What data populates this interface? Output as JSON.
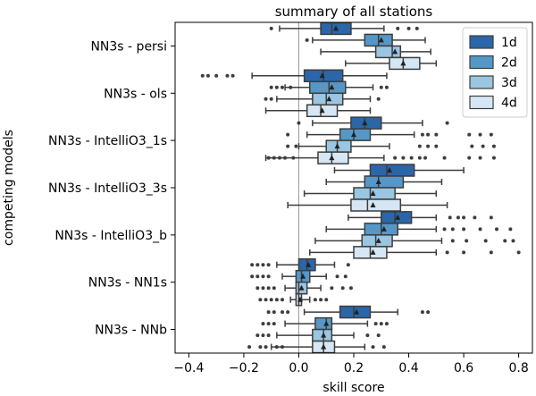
{
  "chart_data": {
    "type": "boxplot",
    "orientation": "horizontal",
    "title": "summary of all stations",
    "xlabel": "skill score",
    "ylabel": "competing models",
    "xlim": [
      -0.45,
      0.85
    ],
    "xticks": [
      -0.4,
      -0.2,
      0.0,
      0.2,
      0.4,
      0.6,
      0.8
    ],
    "xtick_labels": [
      "−0.4",
      "−0.2",
      "0.0",
      "0.2",
      "0.4",
      "0.6",
      "0.8"
    ],
    "reference_line": 0.0,
    "legend_position": "top-right",
    "series": [
      {
        "name": "1d",
        "color": "#2b66a8"
      },
      {
        "name": "2d",
        "color": "#5598c8"
      },
      {
        "name": "3d",
        "color": "#9ac6e1"
      },
      {
        "name": "4d",
        "color": "#d6e6f4"
      }
    ],
    "categories": [
      "NN3s - persi",
      "NN3s - ols",
      "NN3s - IntelliO3_1s",
      "NN3s - IntelliO3_3s",
      "NN3s - IntelliO3_b",
      "NN3s - NN1s",
      "NN3s - NNb"
    ],
    "boxes": [
      [
        {
          "lw": -0.07,
          "q1": 0.08,
          "med": 0.12,
          "q3": 0.19,
          "uw": 0.31,
          "mean": 0.135,
          "out": [
            -0.1,
            0.36,
            0.4,
            0.43
          ]
        },
        {
          "lw": 0.05,
          "q1": 0.24,
          "med": 0.29,
          "q3": 0.34,
          "uw": 0.46,
          "mean": 0.3,
          "out": [
            0.03
          ]
        },
        {
          "lw": 0.08,
          "q1": 0.28,
          "med": 0.34,
          "q3": 0.37,
          "uw": 0.48,
          "mean": 0.35,
          "out": []
        },
        {
          "lw": 0.17,
          "q1": 0.33,
          "med": 0.38,
          "q3": 0.44,
          "uw": 0.5,
          "mean": 0.38,
          "out": []
        }
      ],
      [
        {
          "lw": -0.17,
          "q1": 0.02,
          "med": 0.09,
          "q3": 0.16,
          "uw": 0.32,
          "mean": 0.085,
          "out": [
            -0.35,
            -0.33,
            -0.3,
            -0.26,
            -0.24
          ]
        },
        {
          "lw": -0.05,
          "q1": 0.04,
          "med": 0.11,
          "q3": 0.17,
          "uw": 0.27,
          "mean": 0.12,
          "out": [
            -0.1,
            -0.08,
            -0.06,
            -0.03,
            0.3,
            0.32
          ]
        },
        {
          "lw": -0.08,
          "q1": 0.05,
          "med": 0.1,
          "q3": 0.16,
          "uw": 0.26,
          "mean": 0.11,
          "out": [
            -0.12,
            -0.1,
            0.29
          ]
        },
        {
          "lw": -0.12,
          "q1": 0.03,
          "med": 0.08,
          "q3": 0.14,
          "uw": 0.26,
          "mean": 0.085,
          "out": []
        }
      ],
      [
        {
          "lw": 0.05,
          "q1": 0.19,
          "med": 0.24,
          "q3": 0.3,
          "uw": 0.45,
          "mean": 0.24,
          "out": [
            0.0,
            0.54
          ]
        },
        {
          "lw": 0.03,
          "q1": 0.15,
          "med": 0.2,
          "q3": 0.26,
          "uw": 0.42,
          "mean": 0.2,
          "out": [
            -0.04,
            0.45,
            0.47,
            0.5,
            0.62,
            0.66,
            0.7
          ]
        },
        {
          "lw": 0.0,
          "q1": 0.1,
          "med": 0.14,
          "q3": 0.19,
          "uw": 0.33,
          "mean": 0.14,
          "out": [
            -0.04,
            -0.01,
            0.44,
            0.47,
            0.5,
            0.63,
            0.67,
            0.71
          ]
        },
        {
          "lw": -0.12,
          "q1": 0.07,
          "med": 0.12,
          "q3": 0.18,
          "uw": 0.31,
          "mean": 0.12,
          "out": [
            -0.11,
            -0.09,
            -0.07,
            -0.05,
            -0.02,
            0.35,
            0.38,
            0.41,
            0.44,
            0.46,
            0.53,
            0.62,
            0.66,
            0.71
          ]
        }
      ],
      [
        {
          "lw": 0.13,
          "q1": 0.26,
          "med": 0.32,
          "q3": 0.42,
          "uw": 0.6,
          "mean": 0.33,
          "out": []
        },
        {
          "lw": 0.1,
          "q1": 0.24,
          "med": 0.29,
          "q3": 0.38,
          "uw": 0.52,
          "mean": 0.29,
          "out": []
        },
        {
          "lw": 0.02,
          "q1": 0.2,
          "med": 0.26,
          "q3": 0.35,
          "uw": 0.5,
          "mean": 0.27,
          "out": []
        },
        {
          "lw": -0.04,
          "q1": 0.19,
          "med": 0.25,
          "q3": 0.37,
          "uw": 0.54,
          "mean": 0.27,
          "out": []
        }
      ],
      [
        {
          "lw": 0.18,
          "q1": 0.3,
          "med": 0.35,
          "q3": 0.41,
          "uw": 0.5,
          "mean": 0.36,
          "out": [
            0.55,
            0.58,
            0.6,
            0.64,
            0.7
          ]
        },
        {
          "lw": 0.1,
          "q1": 0.24,
          "med": 0.3,
          "q3": 0.36,
          "uw": 0.5,
          "mean": 0.31,
          "out": [
            0.53,
            0.56,
            0.6,
            0.66,
            0.72,
            0.77
          ]
        },
        {
          "lw": 0.06,
          "q1": 0.23,
          "med": 0.28,
          "q3": 0.34,
          "uw": 0.52,
          "mean": 0.29,
          "out": [
            0.56,
            0.61,
            0.68,
            0.75,
            0.78
          ]
        },
        {
          "lw": 0.04,
          "q1": 0.2,
          "med": 0.26,
          "q3": 0.32,
          "uw": 0.5,
          "mean": 0.27,
          "out": [
            0.54,
            0.6,
            0.7,
            0.8
          ]
        }
      ],
      [
        {
          "lw": -0.08,
          "q1": 0.0,
          "med": 0.03,
          "q3": 0.06,
          "uw": 0.13,
          "mean": 0.035,
          "out": [
            -0.17,
            -0.15,
            -0.13,
            -0.11,
            0.18
          ]
        },
        {
          "lw": -0.06,
          "q1": -0.01,
          "med": 0.01,
          "q3": 0.04,
          "uw": 0.1,
          "mean": 0.015,
          "out": [
            -0.17,
            -0.15,
            -0.13,
            -0.11,
            0.14,
            0.17
          ]
        },
        {
          "lw": -0.05,
          "q1": -0.01,
          "med": 0.0,
          "q3": 0.03,
          "uw": 0.08,
          "mean": 0.01,
          "out": [
            -0.15,
            -0.13,
            -0.11,
            -0.09,
            0.12,
            0.16,
            0.19
          ]
        },
        {
          "lw": -0.03,
          "q1": -0.01,
          "med": 0.0,
          "q3": 0.01,
          "uw": 0.04,
          "mean": 0.005,
          "out": [
            -0.14,
            -0.12,
            -0.1,
            -0.08,
            -0.06,
            0.06,
            0.08,
            0.1
          ]
        }
      ],
      [
        {
          "lw": 0.02,
          "q1": 0.15,
          "med": 0.2,
          "q3": 0.26,
          "uw": 0.36,
          "mean": 0.21,
          "out": [
            -0.11,
            -0.09,
            -0.06,
            -0.04,
            0.45,
            0.47
          ]
        },
        {
          "lw": -0.05,
          "q1": 0.06,
          "med": 0.1,
          "q3": 0.12,
          "uw": 0.25,
          "mean": 0.1,
          "out": [
            -0.13,
            -0.11,
            -0.09,
            0.28,
            0.3,
            0.32
          ]
        },
        {
          "lw": -0.08,
          "q1": 0.05,
          "med": 0.09,
          "q3": 0.12,
          "uw": 0.2,
          "mean": 0.09,
          "out": [
            -0.15,
            -0.13,
            -0.11,
            0.25,
            0.29
          ]
        },
        {
          "lw": -0.1,
          "q1": 0.05,
          "med": 0.09,
          "q3": 0.13,
          "uw": 0.24,
          "mean": 0.09,
          "out": [
            -0.18,
            -0.14,
            -0.12,
            -0.08,
            -0.06,
            0.27,
            0.31
          ]
        }
      ]
    ]
  }
}
